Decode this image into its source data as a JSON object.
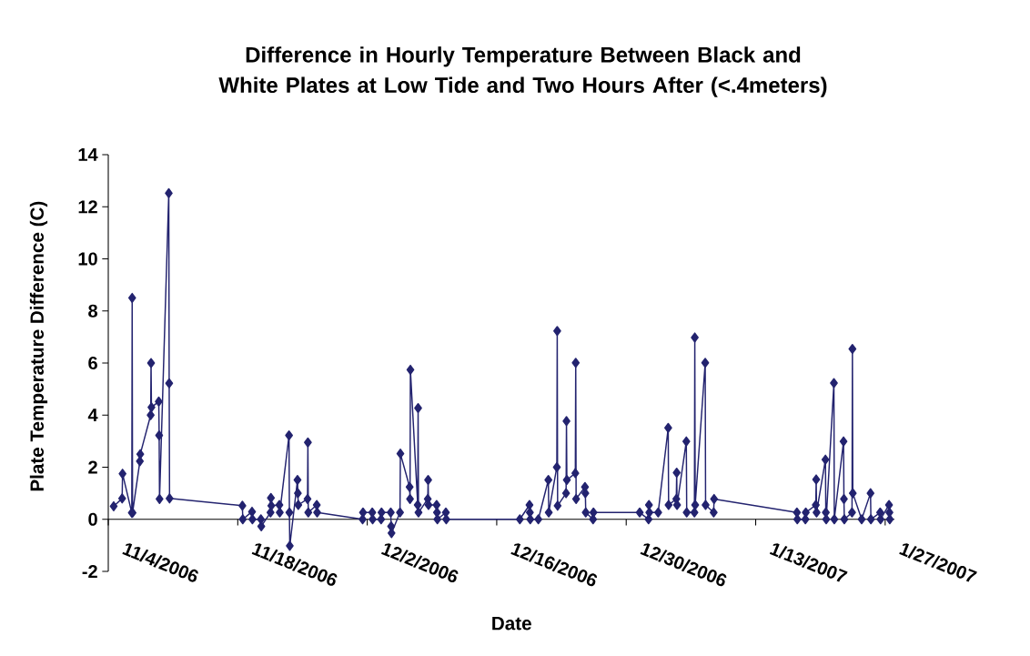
{
  "chart_data": {
    "type": "line",
    "title": "Difference in Hourly Temperature Between Black and White Plates at Low Tide and Two Hours After (<.4meters)",
    "xlabel": "Date",
    "ylabel": "Plate Temperature Difference (C)",
    "xlim": [
      "2006-11-04",
      "2007-01-28"
    ],
    "xticks": [
      {
        "value": "2006-11-04",
        "label": "11/4/2006"
      },
      {
        "value": "2006-11-18",
        "label": "11/18/2006"
      },
      {
        "value": "2006-12-02",
        "label": "12/2/2006"
      },
      {
        "value": "2006-12-16",
        "label": "12/16/2006"
      },
      {
        "value": "2006-12-30",
        "label": "12/30/2006"
      },
      {
        "value": "2007-01-13",
        "label": "1/13/2007"
      },
      {
        "value": "2007-01-27",
        "label": "1/27/2007"
      }
    ],
    "ylim": [
      -2,
      14
    ],
    "yticks": [
      -2,
      0,
      2,
      4,
      6,
      8,
      10,
      12,
      14
    ],
    "marker": "diamond",
    "line_style": "solid",
    "series": [
      {
        "color": "#23236f",
        "x": [
          "2006-11-04T14:00",
          "2006-11-05T12:00",
          "2006-11-05T13:00",
          "2006-11-06T13:00",
          "2006-11-06T14:00",
          "2006-11-06T15:00",
          "2006-11-07T10:00",
          "2006-11-07T11:00",
          "2006-11-08T14:00",
          "2006-11-08T15:00",
          "2006-11-08T16:00",
          "2006-11-09T11:00",
          "2006-11-09T12:00",
          "2006-11-09T13:00",
          "2006-11-10T13:00",
          "2006-11-10T14:00",
          "2006-11-10T15:00",
          "2006-11-18T12:00",
          "2006-11-18T13:00",
          "2006-11-19T13:00",
          "2006-11-19T14:00",
          "2006-11-20T12:00",
          "2006-11-20T13:00",
          "2006-11-21T13:00",
          "2006-11-21T14:00",
          "2006-11-21T15:00",
          "2006-11-22T12:00",
          "2006-11-22T13:00",
          "2006-11-23T13:00",
          "2006-11-23T14:00",
          "2006-11-23T15:00",
          "2006-11-24T11:00",
          "2006-11-24T12:00",
          "2006-11-24T13:00",
          "2006-11-25T13:00",
          "2006-11-25T14:00",
          "2006-11-25T15:00",
          "2006-11-26T13:00",
          "2006-11-26T14:00",
          "2006-12-01T12:00",
          "2006-12-01T13:00",
          "2006-12-02T13:00",
          "2006-12-02T14:00",
          "2006-12-03T12:00",
          "2006-12-03T13:00",
          "2006-12-04T13:00",
          "2006-12-04T14:00",
          "2006-12-04T15:00",
          "2006-12-05T13:00",
          "2006-12-05T14:00",
          "2006-12-06T14:00",
          "2006-12-06T15:00",
          "2006-12-06T16:00",
          "2006-12-07T11:00",
          "2006-12-07T12:00",
          "2006-12-07T13:00",
          "2006-12-08T13:00",
          "2006-12-08T14:00",
          "2006-12-08T15:00",
          "2006-12-09T12:00",
          "2006-12-09T13:00",
          "2006-12-09T14:00",
          "2006-12-10T12:00",
          "2006-12-10T13:00",
          "2006-12-18T12:00",
          "2006-12-19T13:00",
          "2006-12-19T14:00",
          "2006-12-19T15:00",
          "2006-12-20T12:00",
          "2006-12-21T14:00",
          "2006-12-21T15:00",
          "2006-12-22T12:00",
          "2006-12-22T13:00",
          "2006-12-22T14:00",
          "2006-12-23T12:00",
          "2006-12-23T13:00",
          "2006-12-23T14:00",
          "2006-12-24T12:00",
          "2006-12-24T13:00",
          "2006-12-24T14:00",
          "2006-12-25T13:00",
          "2006-12-25T14:00",
          "2006-12-25T15:00",
          "2006-12-26T10:00",
          "2006-12-26T11:00",
          "2006-12-31T11:00",
          "2007-01-01T10:00",
          "2007-01-01T11:00",
          "2007-01-01T12:00",
          "2007-01-02T11:00",
          "2007-01-03T13:00",
          "2007-01-03T14:00",
          "2007-01-04T10:00",
          "2007-01-04T11:00",
          "2007-01-04T12:00",
          "2007-01-05T12:00",
          "2007-01-05T13:00",
          "2007-01-06T09:00",
          "2007-01-06T10:00",
          "2007-01-06T11:00",
          "2007-01-07T13:00",
          "2007-01-07T14:00",
          "2007-01-08T11:00",
          "2007-01-08T12:00",
          "2007-01-17T11:00",
          "2007-01-17T12:00",
          "2007-01-18T09:00",
          "2007-01-18T10:00",
          "2007-01-19T12:00",
          "2007-01-19T13:00",
          "2007-01-19T14:00",
          "2007-01-20T13:00",
          "2007-01-20T14:00",
          "2007-01-20T15:00",
          "2007-01-21T11:00",
          "2007-01-21T12:00",
          "2007-01-22T12:00",
          "2007-01-22T13:00",
          "2007-01-22T14:00",
          "2007-01-23T10:00",
          "2007-01-23T11:00",
          "2007-01-23T12:00",
          "2007-01-24T11:00",
          "2007-01-25T10:00",
          "2007-01-25T11:00",
          "2007-01-26T11:00",
          "2007-01-26T12:00",
          "2007-01-27T10:00",
          "2007-01-27T11:00",
          "2007-01-27T12:00"
        ],
        "values": [
          0.5,
          0.8,
          1.75,
          0.25,
          8.5,
          0.25,
          2.23,
          2.5,
          4.0,
          6.0,
          4.3,
          4.52,
          3.22,
          0.78,
          12.52,
          5.22,
          0.8,
          0.52,
          0,
          0.29,
          0,
          0,
          -0.27,
          0.26,
          0.82,
          0.52,
          0.55,
          0.26,
          3.22,
          0.26,
          -1.02,
          1.51,
          1.0,
          0.55,
          0.78,
          2.95,
          0.26,
          0.55,
          0.26,
          0,
          0.26,
          0.26,
          0,
          0,
          0.26,
          0.26,
          -0.27,
          -0.53,
          0.26,
          2.52,
          1.24,
          0.78,
          5.74,
          0.55,
          4.27,
          0.26,
          0.78,
          1.51,
          0.55,
          0.55,
          0.26,
          0,
          0.26,
          0,
          0,
          0.55,
          0.26,
          0,
          0,
          1.51,
          0.26,
          2.0,
          7.23,
          0.52,
          1.0,
          3.77,
          1.51,
          1.77,
          6.01,
          0.78,
          1.24,
          1.0,
          0.26,
          0,
          0.26,
          0.26,
          0,
          0.55,
          0.26,
          0.26,
          3.51,
          0.55,
          0.78,
          1.79,
          0.55,
          2.99,
          0.26,
          0.26,
          6.98,
          0.55,
          6.01,
          0.55,
          0.26,
          0.78,
          0.26,
          0,
          0,
          0.26,
          0.55,
          1.53,
          0.26,
          2.29,
          0.26,
          0,
          5.23,
          0,
          2.99,
          0.78,
          0,
          0.26,
          6.54,
          1.0,
          0,
          1.0,
          0,
          0.26,
          0,
          0.55,
          0.26,
          0
        ]
      }
    ]
  }
}
